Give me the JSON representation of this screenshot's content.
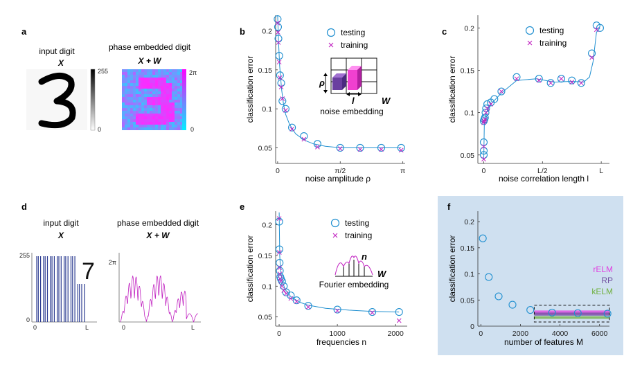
{
  "panel_a": {
    "letter": "a",
    "input_title": "input digit",
    "input_sym": "X",
    "embedded_title": "phase embedded digit",
    "embedded_sym": "X + W",
    "cbar_gray_max": "255",
    "cbar_gray_min": "0",
    "cbar_phase_max": "2π",
    "cbar_phase_min": "0"
  },
  "panel_d": {
    "letter": "d",
    "input_title": "input digit",
    "input_sym": "X",
    "embedded_title": "phase embedded digit",
    "embedded_sym": "X + W",
    "y_max": "255",
    "y_min": "0",
    "x_min": "0",
    "x_max": "L",
    "phase_max": "2π",
    "phase_min": "0",
    "phase_x_min": "0",
    "phase_x_max": "L",
    "inset_digit": "7"
  },
  "panel_b": {
    "letter": "b",
    "legend": [
      "testing",
      "training"
    ],
    "inset_caption": "noise embedding",
    "inset_rho": "ρ",
    "inset_l": "l",
    "inset_W": "W"
  },
  "panel_c": {
    "letter": "c",
    "legend": [
      "testing",
      "training"
    ]
  },
  "panel_e": {
    "letter": "e",
    "legend": [
      "testing",
      "training"
    ],
    "inset_caption": "Fourier embedding",
    "inset_n": "n",
    "inset_W": "W"
  },
  "panel_f": {
    "letter": "f",
    "methods": [
      "rELM",
      "RP",
      "kELM"
    ],
    "colors": {
      "rELM": "#e040e0",
      "RP": "#7050a0",
      "kELM": "#70b040",
      "bg": "#cfe0f0"
    }
  },
  "colors": {
    "testing": "#1f8fd0",
    "training": "#c020c0",
    "fit": "#1f8fd0"
  },
  "chart_data": [
    {
      "id": "b",
      "type": "scatter",
      "title": "",
      "xlabel": "noise amplitude ρ",
      "ylabel": "classification error",
      "xlim": [
        -0.05,
        3.2
      ],
      "ylim": [
        0.03,
        0.22
      ],
      "xticks": [
        0,
        1.5708,
        3.1416
      ],
      "xtick_labels": [
        "0",
        "π/2",
        "π"
      ],
      "yticks": [
        0.05,
        0.1,
        0.15,
        0.2
      ],
      "ytick_labels": [
        "0.05",
        "0.1",
        "0.15",
        "0.2"
      ],
      "series": [
        {
          "name": "testing",
          "marker": "circle",
          "x": [
            0,
            0.01,
            0.02,
            0.04,
            0.06,
            0.09,
            0.12,
            0.2,
            0.36,
            0.66,
            1.0,
            1.57,
            2.07,
            2.6,
            3.1
          ],
          "y": [
            0.215,
            0.205,
            0.19,
            0.168,
            0.143,
            0.133,
            0.11,
            0.1,
            0.076,
            0.065,
            0.055,
            0.05,
            0.05,
            0.05,
            0.05
          ]
        },
        {
          "name": "training",
          "marker": "x",
          "x": [
            0,
            0.01,
            0.02,
            0.04,
            0.06,
            0.09,
            0.12,
            0.2,
            0.36,
            0.66,
            1.0,
            1.57,
            2.07,
            2.6,
            3.1
          ],
          "y": [
            0.21,
            0.198,
            0.185,
            0.16,
            0.14,
            0.128,
            0.113,
            0.098,
            0.074,
            0.061,
            0.051,
            0.049,
            0.048,
            0.048,
            0.047
          ]
        },
        {
          "name": "fit",
          "type": "line",
          "x": [
            0,
            0.02,
            0.05,
            0.1,
            0.15,
            0.2,
            0.3,
            0.45,
            0.66,
            0.9,
            1.2,
            1.6,
            2.0,
            2.5,
            3.1
          ],
          "y": [
            0.22,
            0.19,
            0.155,
            0.125,
            0.105,
            0.093,
            0.08,
            0.068,
            0.06,
            0.055,
            0.052,
            0.05,
            0.05,
            0.05,
            0.05
          ]
        }
      ]
    },
    {
      "id": "c",
      "type": "scatter",
      "title": "",
      "xlabel": "noise correlation length l",
      "ylabel": "classification error",
      "xlim": [
        -0.05,
        1.07
      ],
      "ylim": [
        0.04,
        0.215
      ],
      "xticks": [
        0,
        0.5,
        1
      ],
      "xtick_labels": [
        "0",
        "L/2",
        "L"
      ],
      "yticks": [
        0.05,
        0.1,
        0.15,
        0.2
      ],
      "ytick_labels": [
        "0.05",
        "0.1",
        "0.15",
        "0.2"
      ],
      "series": [
        {
          "name": "testing",
          "marker": "circle",
          "x": [
            0,
            0,
            0,
            0,
            0.005,
            0.01,
            0.015,
            0.02,
            0.03,
            0.06,
            0.09,
            0.15,
            0.28,
            0.47,
            0.57,
            0.66,
            0.75,
            0.83,
            0.92,
            0.96,
            0.99
          ],
          "y": [
            0.05,
            0.055,
            0.065,
            0.09,
            0.092,
            0.094,
            0.1,
            0.105,
            0.11,
            0.112,
            0.116,
            0.125,
            0.142,
            0.14,
            0.135,
            0.14,
            0.138,
            0.135,
            0.17,
            0.203,
            0.2
          ]
        },
        {
          "name": "training",
          "marker": "x",
          "x": [
            0,
            0,
            0,
            0.005,
            0.01,
            0.02,
            0.03,
            0.06,
            0.15,
            0.28,
            0.47,
            0.57,
            0.66,
            0.75,
            0.83,
            0.92,
            0.96
          ],
          "y": [
            0.045,
            0.06,
            0.088,
            0.09,
            0.092,
            0.1,
            0.105,
            0.11,
            0.125,
            0.14,
            0.138,
            0.135,
            0.14,
            0.136,
            0.135,
            0.165,
            0.198
          ]
        },
        {
          "name": "fit",
          "type": "line",
          "x": [
            0,
            0.005,
            0.02,
            0.06,
            0.15,
            0.28,
            0.45,
            0.6,
            0.75,
            0.85,
            0.9,
            0.93,
            0.96,
            0.99
          ],
          "y": [
            0.045,
            0.085,
            0.1,
            0.11,
            0.123,
            0.138,
            0.14,
            0.136,
            0.137,
            0.136,
            0.142,
            0.16,
            0.195,
            0.2
          ]
        }
      ]
    },
    {
      "id": "e",
      "type": "scatter",
      "title": "",
      "xlabel": "frequencies n",
      "ylabel": "classification error",
      "xlim": [
        -60,
        2200
      ],
      "ylim": [
        0.035,
        0.222
      ],
      "xticks": [
        0,
        1000,
        2000
      ],
      "xtick_labels": [
        "0",
        "1000",
        "2000"
      ],
      "yticks": [
        0.05,
        0.1,
        0.15,
        0.2
      ],
      "ytick_labels": [
        "0.05",
        "0.1",
        "0.15",
        "0.2"
      ],
      "series": [
        {
          "name": "testing",
          "marker": "circle",
          "x": [
            1,
            4,
            8,
            12,
            20,
            30,
            50,
            80,
            120,
            200,
            300,
            500,
            1000,
            1600,
            2060
          ],
          "y": [
            0.205,
            0.16,
            0.138,
            0.125,
            0.115,
            0.112,
            0.108,
            0.1,
            0.09,
            0.085,
            0.077,
            0.068,
            0.062,
            0.058,
            0.058
          ]
        },
        {
          "name": "training",
          "marker": "x",
          "x": [
            1,
            4,
            8,
            12,
            20,
            30,
            50,
            80,
            120,
            200,
            300,
            500,
            1000,
            1600,
            2060
          ],
          "y": [
            0.21,
            0.155,
            0.13,
            0.12,
            0.112,
            0.108,
            0.1,
            0.093,
            0.088,
            0.08,
            0.075,
            0.066,
            0.06,
            0.057,
            0.044
          ]
        },
        {
          "name": "fit",
          "type": "line",
          "x": [
            1,
            10,
            25,
            50,
            100,
            200,
            350,
            500,
            800,
            1200,
            1600,
            2060
          ],
          "y": [
            0.22,
            0.15,
            0.125,
            0.11,
            0.095,
            0.083,
            0.074,
            0.069,
            0.064,
            0.061,
            0.059,
            0.058
          ]
        }
      ]
    },
    {
      "id": "f",
      "type": "scatter",
      "title": "",
      "xlabel": "number of features M",
      "ylabel": "classification error",
      "xlim": [
        -150,
        6500
      ],
      "ylim": [
        0,
        0.22
      ],
      "xticks": [
        0,
        2000,
        4000,
        6000
      ],
      "xtick_labels": [
        "0",
        "2000",
        "4000",
        "6000"
      ],
      "yticks": [
        0,
        0.05,
        0.1,
        0.15,
        0.2
      ],
      "ytick_labels": [
        "0",
        "0.05",
        "0.1",
        "0.15",
        "0.2"
      ],
      "series": [
        {
          "name": "rELM",
          "marker": "circle",
          "x": [
            100,
            400,
            900,
            1600,
            2500,
            3600,
            4900,
            6400
          ],
          "y": [
            0.168,
            0.094,
            0.057,
            0.041,
            0.031,
            0.026,
            0.025,
            0.024
          ]
        }
      ],
      "bands": [
        {
          "name": "rELM",
          "range": [
            0.022,
            0.03
          ]
        },
        {
          "name": "RP",
          "range": [
            0.02,
            0.026
          ]
        },
        {
          "name": "kELM",
          "range": [
            0.014,
            0.019
          ]
        }
      ],
      "inset_box": {
        "x": [
          2700,
          6500
        ],
        "y": [
          0.008,
          0.04
        ]
      }
    }
  ]
}
